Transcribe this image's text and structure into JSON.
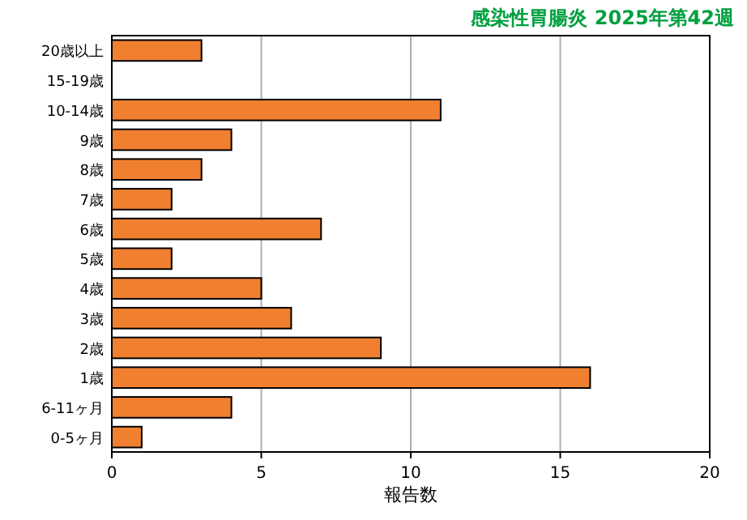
{
  "chart_data": {
    "type": "bar",
    "orientation": "horizontal",
    "title": "感染性胃腸炎 2025年第42週",
    "xlabel": "報告数",
    "categories": [
      "20歳以上",
      "15-19歳",
      "10-14歳",
      "9歳",
      "8歳",
      "7歳",
      "6歳",
      "5歳",
      "4歳",
      "3歳",
      "2歳",
      "1歳",
      "6-11ヶ月",
      "0-5ヶ月"
    ],
    "values": [
      3,
      0,
      11,
      4,
      3,
      2,
      7,
      2,
      5,
      6,
      9,
      16,
      4,
      1
    ],
    "color": "#f08030",
    "xlim": [
      0,
      20
    ],
    "xticks": [
      0,
      5,
      10,
      15,
      20
    ],
    "grid": "x"
  }
}
